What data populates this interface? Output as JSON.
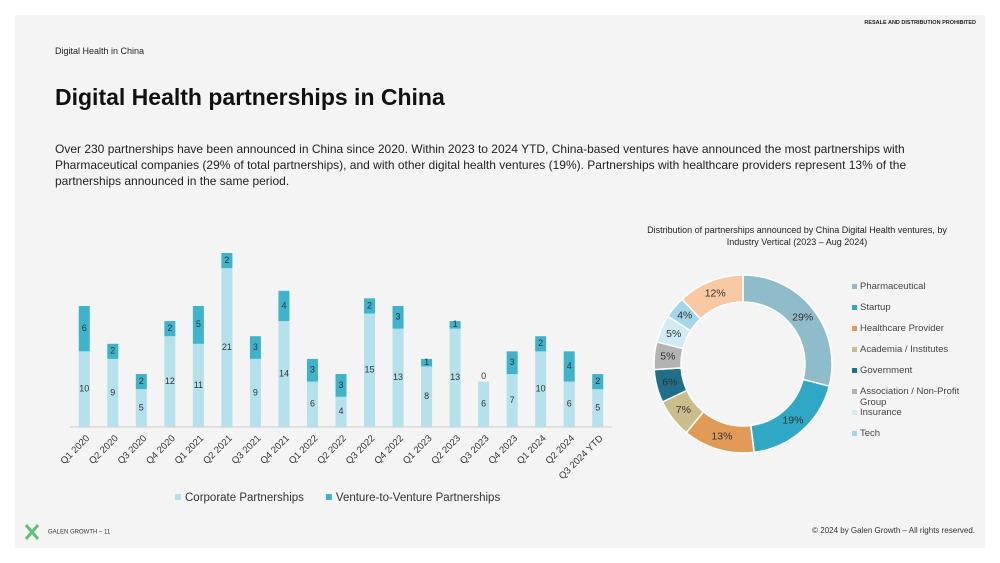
{
  "page": {
    "notice": "RESALE AND DISTRIBUTION PROHIBITED",
    "section": "Digital Health in China",
    "title": "Digital Health partnerships in China",
    "body": "Over 230 partnerships have been announced in China since 2020. Within 2023 to 2024 YTD, China-based ventures have announced the most partnerships with Pharmaceutical companies (29% of total partnerships), and with other digital health ventures (19%). Partnerships with healthcare providers represent 13% of the partnerships announced in the same period.",
    "footer_left": "GALEN GROWTH – 11",
    "footer_right": "© 2024 by Galen Growth  – All rights reserved."
  },
  "chart_data": [
    {
      "type": "stacked_bar",
      "legend": "bottom",
      "categories": [
        "Q1 2020",
        "Q2 2020",
        "Q3 2020",
        "Q4 2020",
        "Q1 2021",
        "Q2 2021",
        "Q3 2021",
        "Q4 2021",
        "Q1 2022",
        "Q2 2022",
        "Q3 2022",
        "Q4 2022",
        "Q1 2023",
        "Q2 2023",
        "Q3 2023",
        "Q4 2023",
        "Q1 2024",
        "Q2 2024",
        "Q3 2024 YTD"
      ],
      "series": [
        {
          "name": "Corporate Partnerships",
          "color": "#b4e1eb",
          "values": [
            10,
            9,
            5,
            12,
            11,
            21,
            9,
            14,
            6,
            4,
            15,
            13,
            8,
            13,
            6,
            7,
            10,
            6,
            5
          ]
        },
        {
          "name": "Venture-to-Venture Partnerships",
          "color": "#3db4cc",
          "values": [
            6,
            2,
            2,
            2,
            5,
            2,
            3,
            4,
            3,
            3,
            2,
            3,
            1,
            1,
            0,
            3,
            2,
            4,
            2
          ]
        }
      ]
    },
    {
      "type": "donut",
      "title": "Distribution of partnerships announced by China Digital Health ventures, by Industry Vertical (2023 – Aug 2024)",
      "legend": "right",
      "categories": [
        "Pharmaceutical",
        "Startup",
        "Healthcare Provider",
        "Academia / Institutes",
        "Government",
        "Association / Non-Profit Group",
        "Insurance",
        "Tech",
        null
      ],
      "values": [
        29,
        19,
        13,
        7,
        6,
        5,
        5,
        4,
        12
      ],
      "value_labels": [
        "29%",
        "19%",
        "13%",
        "7%",
        "6%",
        "5%",
        "5%",
        "4%",
        "12%"
      ],
      "colors": [
        "#8fbccb",
        "#2fa8c6",
        "#e29b57",
        "#c9bd8c",
        "#1e6f8a",
        "#b3b3b3",
        "#d0ebf2",
        "#a3d6e8",
        "#f8c8a3"
      ]
    }
  ]
}
